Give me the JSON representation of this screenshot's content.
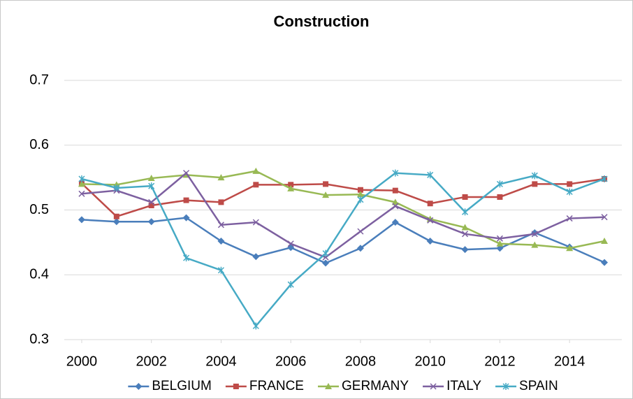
{
  "chart_data": {
    "type": "line",
    "title": "Construction",
    "x": [
      2000,
      2001,
      2002,
      2003,
      2004,
      2005,
      2006,
      2007,
      2008,
      2009,
      2010,
      2011,
      2012,
      2013,
      2014,
      2015
    ],
    "xlim": [
      1999.5,
      2015.5
    ],
    "xticks": [
      2000,
      2002,
      2004,
      2006,
      2008,
      2010,
      2012,
      2014
    ],
    "ylim": [
      0.3,
      0.7
    ],
    "yticks": [
      0.3,
      0.4,
      0.5,
      0.6,
      0.7
    ],
    "grid": true,
    "legend": "bottom",
    "series": [
      {
        "name": "BELGIUM",
        "color": "#4a7ebb",
        "marker": "diamond",
        "values": [
          0.485,
          0.482,
          0.482,
          0.488,
          0.452,
          0.428,
          0.442,
          0.418,
          0.441,
          0.481,
          0.452,
          0.439,
          0.441,
          0.465,
          0.443,
          0.419
        ]
      },
      {
        "name": "FRANCE",
        "color": "#be4b48",
        "marker": "square",
        "values": [
          0.541,
          0.49,
          0.507,
          0.515,
          0.512,
          0.539,
          0.539,
          0.54,
          0.531,
          0.53,
          0.51,
          0.52,
          0.52,
          0.54,
          0.54,
          0.548
        ]
      },
      {
        "name": "GERMANY",
        "color": "#98b954",
        "marker": "triangle",
        "values": [
          0.54,
          0.539,
          0.549,
          0.554,
          0.55,
          0.56,
          0.533,
          0.523,
          0.524,
          0.512,
          0.486,
          0.473,
          0.448,
          0.446,
          0.441,
          0.452
        ]
      },
      {
        "name": "ITALY",
        "color": "#7d60a0",
        "marker": "x",
        "values": [
          0.525,
          0.53,
          0.512,
          0.557,
          0.477,
          0.481,
          0.448,
          0.427,
          0.467,
          0.506,
          0.484,
          0.463,
          0.456,
          0.463,
          0.487,
          0.489
        ]
      },
      {
        "name": "SPAIN",
        "color": "#46aac5",
        "marker": "star",
        "values": [
          0.548,
          0.534,
          0.537,
          0.426,
          0.407,
          0.321,
          0.385,
          0.433,
          0.516,
          0.557,
          0.554,
          0.497,
          0.54,
          0.553,
          0.528,
          0.548
        ]
      }
    ]
  }
}
